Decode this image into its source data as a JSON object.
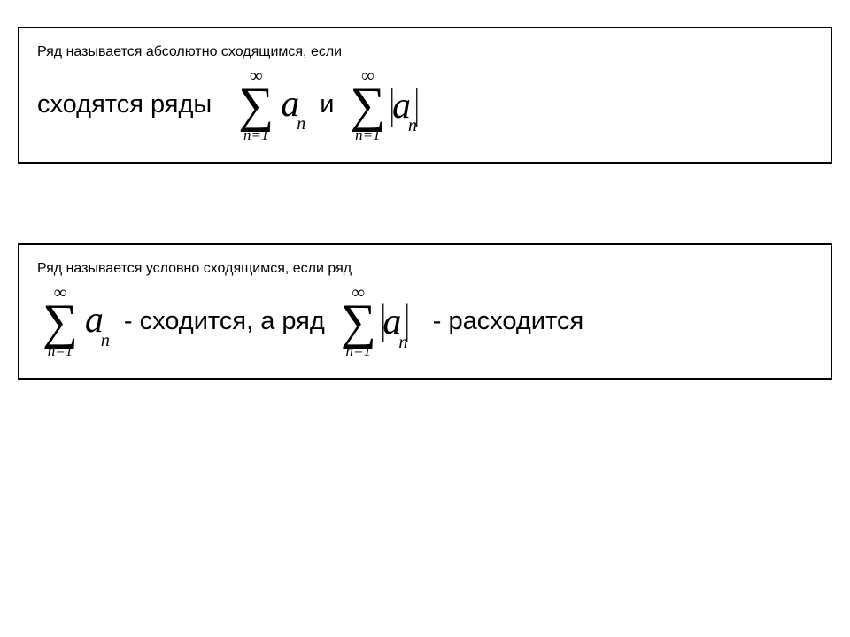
{
  "box1": {
    "line1_text": "Ряд называется абсолютно сходящимся, если",
    "line2_prefix": "сходятся ряды",
    "and_word": "и"
  },
  "box2": {
    "line1_text": "Ряд называется условно сходящимся, если ряд",
    "converges_text": "- сходится, а ряд",
    "diverges_text": "- расходится"
  },
  "sum": {
    "top": "∞",
    "sigma": "∑",
    "bottom": "n=1",
    "var": "a",
    "sub": "n",
    "bar": "|"
  },
  "styles": {
    "border_color": "#000000",
    "bg_color": "#ffffff",
    "text_color": "#000000",
    "body_font_size": 29,
    "math_var_size": 42,
    "sigma_size": 56,
    "sum_top_size": 20,
    "sum_bottom_size": 17
  }
}
